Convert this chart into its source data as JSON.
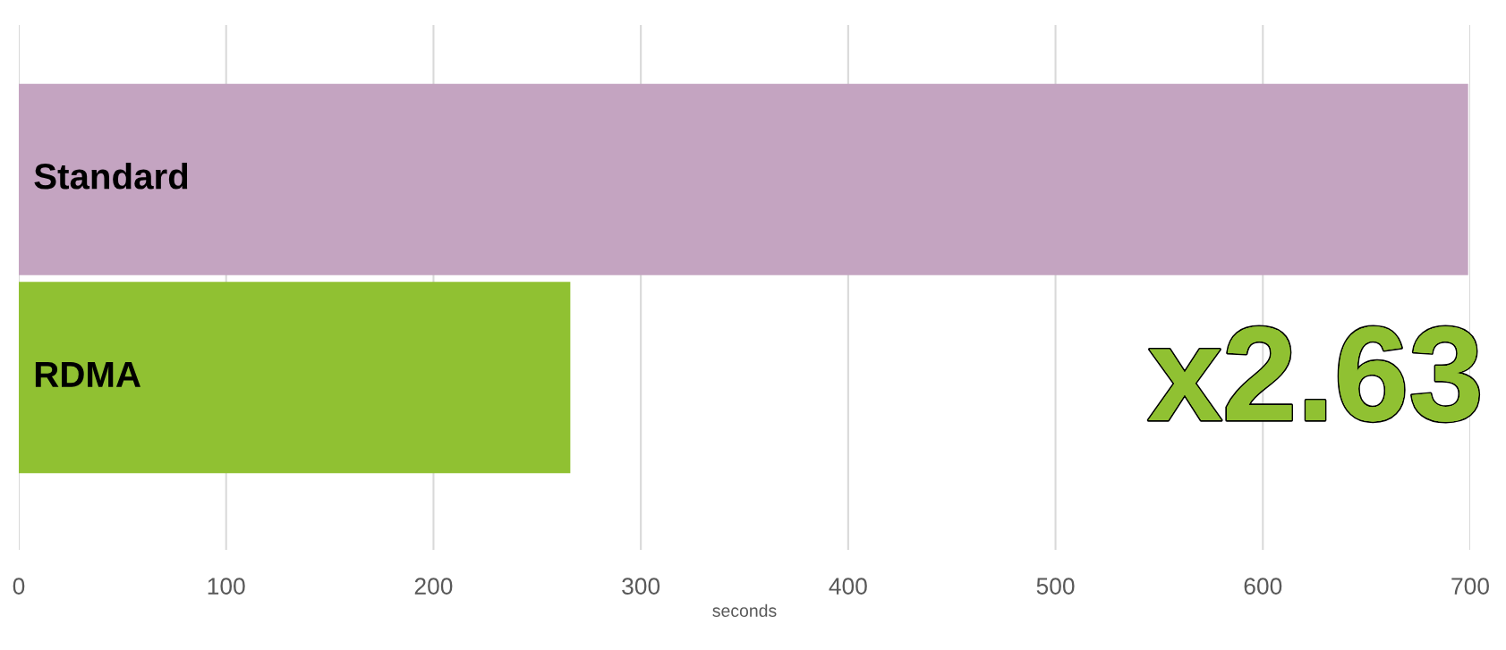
{
  "chart_data": {
    "type": "bar",
    "orientation": "horizontal",
    "categories": [
      "Standard",
      "RDMA"
    ],
    "values": [
      699,
      266
    ],
    "colors": [
      "#c4a4c1",
      "#90c132"
    ],
    "xlabel": "seconds",
    "xlim": [
      0,
      700
    ],
    "xticks": [
      0,
      100,
      200,
      300,
      400,
      500,
      600,
      700
    ],
    "grid": "x",
    "annotations": [
      "x2.63"
    ]
  }
}
